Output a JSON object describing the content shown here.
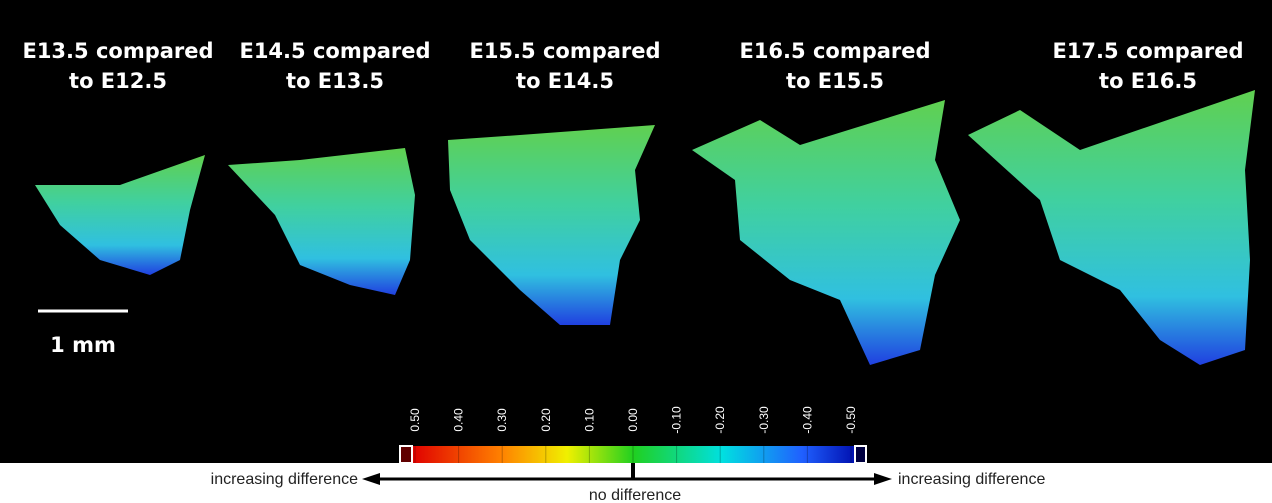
{
  "panels": [
    {
      "title_lines": [
        "E13.5 compared",
        "to E12.5"
      ]
    },
    {
      "title_lines": [
        "E14.5 compared",
        "to E13.5"
      ]
    },
    {
      "title_lines": [
        "E15.5 compared",
        "to E14.5"
      ]
    },
    {
      "title_lines": [
        "E16.5 compared",
        "to E15.5"
      ]
    },
    {
      "title_lines": [
        "E17.5 compared",
        "to E16.5"
      ]
    }
  ],
  "scale_bar": "1 mm",
  "colorbar": {
    "lim": [
      0.5,
      -0.5
    ],
    "ticks": [
      {
        "value": 0.5,
        "label": "0.50"
      },
      {
        "value": 0.4,
        "label": "0.40"
      },
      {
        "value": 0.3,
        "label": "0.30"
      },
      {
        "value": 0.2,
        "label": "0.20"
      },
      {
        "value": 0.1,
        "label": "0.10"
      },
      {
        "value": 0,
        "label": "0.00"
      },
      {
        "value": -0.1,
        "label": "-0.10"
      },
      {
        "value": -0.2,
        "label": "-0.20"
      },
      {
        "value": -0.3,
        "label": "-0.30"
      },
      {
        "value": -0.4,
        "label": "-0.40"
      },
      {
        "value": -0.5,
        "label": "-0.50"
      }
    ]
  },
  "legend": {
    "left": "increasing difference",
    "right": "increasing difference",
    "center": "no difference"
  }
}
